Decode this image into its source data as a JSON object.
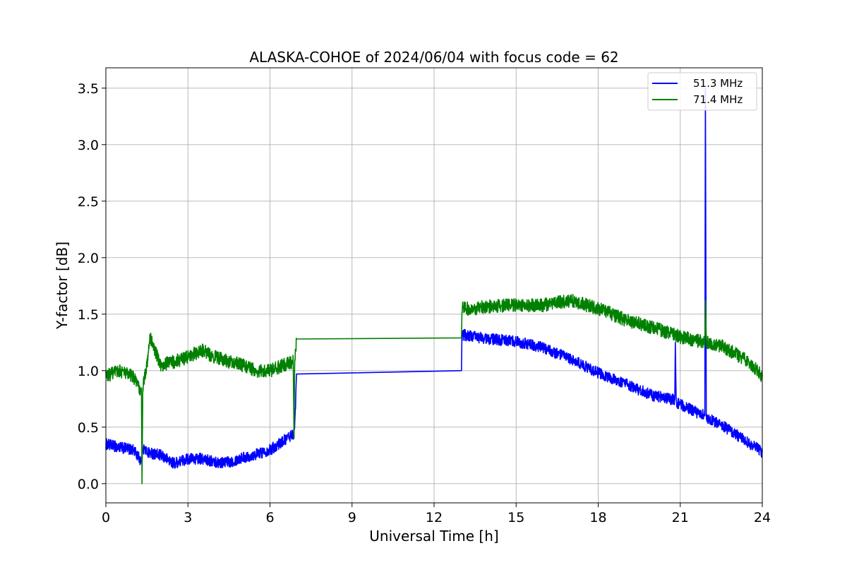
{
  "chart_data": {
    "type": "line",
    "title": "ALASKA-COHOE of 2024/06/04 with focus code = 62",
    "xlabel": "Universal Time [h]",
    "ylabel": "Y-factor [dB]",
    "xlim": [
      0,
      24
    ],
    "ylim": [
      -0.17,
      3.68
    ],
    "xticks": [
      0,
      3,
      6,
      9,
      12,
      15,
      18,
      21,
      24
    ],
    "xtick_labels": [
      "0",
      "3",
      "6",
      "9",
      "12",
      "15",
      "18",
      "21",
      "24"
    ],
    "yticks": [
      0.0,
      0.5,
      1.0,
      1.5,
      2.0,
      2.5,
      3.0,
      3.5
    ],
    "ytick_labels": [
      "0.0",
      "0.5",
      "1.0",
      "1.5",
      "2.0",
      "2.5",
      "3.0",
      "3.5"
    ],
    "grid": true,
    "legend_position": "top-right",
    "series": [
      {
        "name": "51.3 MHz",
        "color": "#0000ff",
        "noise": 0.05,
        "x": [
          0,
          0.5,
          1.0,
          1.3,
          1.35,
          1.5,
          2.0,
          2.5,
          3.0,
          3.5,
          4.0,
          4.5,
          5.0,
          5.5,
          6.0,
          6.5,
          6.9,
          6.97,
          7.0,
          13.0,
          13.02,
          13.5,
          14.0,
          15.0,
          16.0,
          17.0,
          18.0,
          19.0,
          20.0,
          20.8,
          20.82,
          20.85,
          21.0,
          21.5,
          21.9,
          21.92,
          21.95,
          22.0,
          22.5,
          23.0,
          23.5,
          24.0
        ],
        "y": [
          0.35,
          0.32,
          0.3,
          0.2,
          0.32,
          0.28,
          0.25,
          0.18,
          0.22,
          0.22,
          0.19,
          0.19,
          0.23,
          0.26,
          0.3,
          0.38,
          0.45,
          0.97,
          0.97,
          1.0,
          1.32,
          1.3,
          1.28,
          1.26,
          1.2,
          1.1,
          0.98,
          0.88,
          0.78,
          0.74,
          1.25,
          0.72,
          0.7,
          0.64,
          0.6,
          3.5,
          0.6,
          0.58,
          0.52,
          0.44,
          0.36,
          0.28
        ]
      },
      {
        "name": "71.4 MHz",
        "color": "#008000",
        "noise": 0.06,
        "x": [
          0,
          0.5,
          1.0,
          1.3,
          1.32,
          1.35,
          1.5,
          1.6,
          2.0,
          2.5,
          3.0,
          3.5,
          4.0,
          4.5,
          5.0,
          5.5,
          6.0,
          6.5,
          6.85,
          6.88,
          6.9,
          6.97,
          7.0,
          13.0,
          13.02,
          13.5,
          14.0,
          15.0,
          16.0,
          16.5,
          17.0,
          18.0,
          19.0,
          20.0,
          21.0,
          21.9,
          21.92,
          21.95,
          22.0,
          22.5,
          23.0,
          23.5,
          24.0
        ],
        "y": [
          0.95,
          1.0,
          0.95,
          0.8,
          0.0,
          0.85,
          1.05,
          1.3,
          1.05,
          1.08,
          1.12,
          1.18,
          1.12,
          1.08,
          1.05,
          1.0,
          1.0,
          1.05,
          1.08,
          0.4,
          1.05,
          1.28,
          1.28,
          1.29,
          1.55,
          1.55,
          1.57,
          1.58,
          1.58,
          1.6,
          1.62,
          1.55,
          1.45,
          1.38,
          1.3,
          1.25,
          1.62,
          1.25,
          1.25,
          1.22,
          1.15,
          1.08,
          0.95
        ]
      }
    ]
  }
}
